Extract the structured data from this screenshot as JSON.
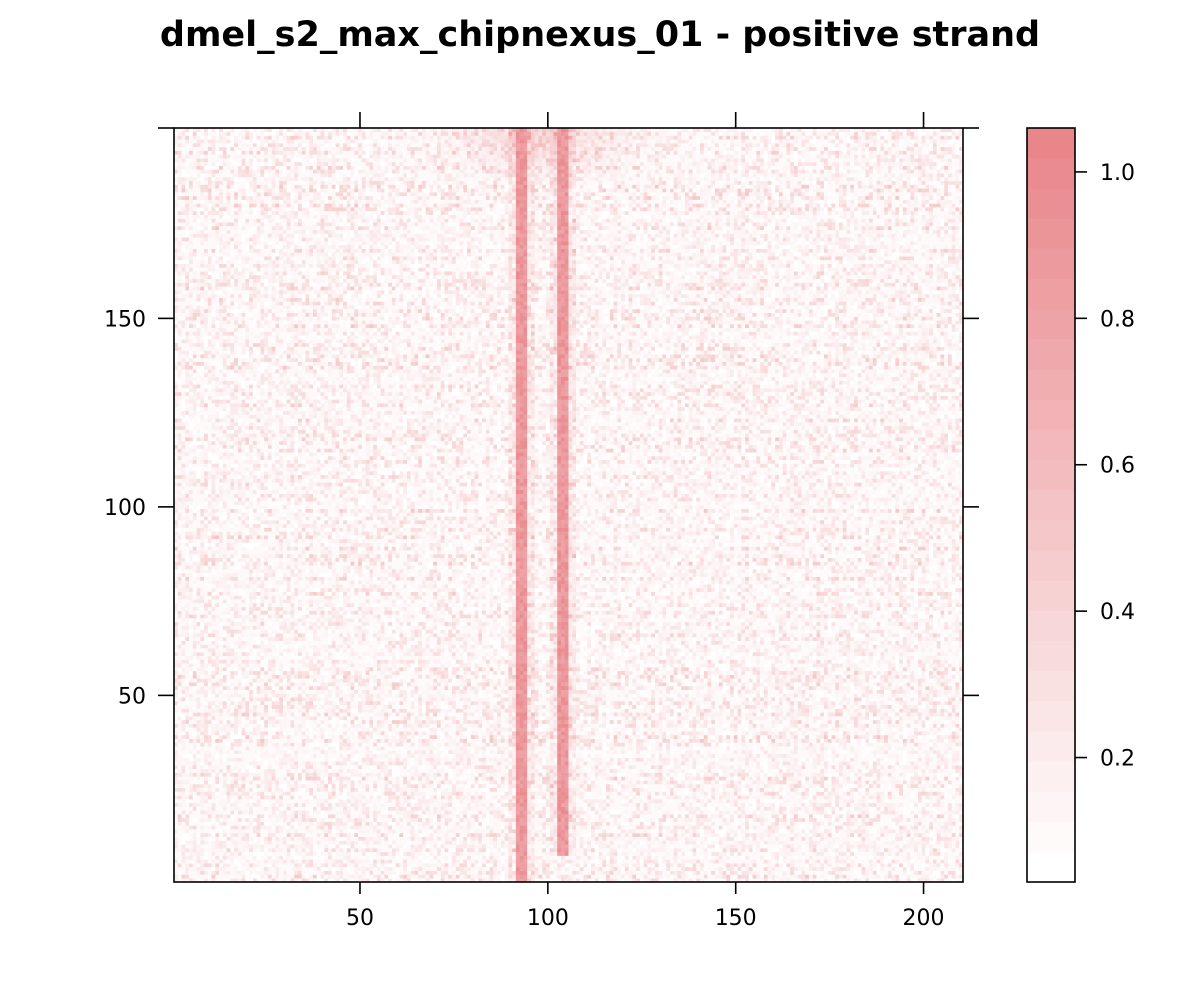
{
  "chart_data": {
    "type": "heatmap",
    "title": "dmel_s2_max_chipnexus_01 - positive strand",
    "xlabel": "",
    "ylabel": "",
    "x_range": [
      1,
      210
    ],
    "y_range": [
      1,
      200
    ],
    "x_ticks": [
      50,
      100,
      150,
      200
    ],
    "y_ticks": [
      50,
      100,
      150
    ],
    "colorbar": {
      "range": [
        0.03,
        1.06
      ],
      "ticks": [
        "0.2",
        "0.4",
        "0.6",
        "0.8",
        "1.0"
      ],
      "tick_values": [
        0.2,
        0.4,
        0.6,
        0.8,
        1.0
      ],
      "low_color": "#ffffff",
      "high_color": "#e8868a"
    },
    "hotspots": [
      {
        "x": 93,
        "y_from": 1,
        "y_to": 200,
        "value": 1.0,
        "note": ""
      },
      {
        "x": 104,
        "y_from": 8,
        "y_to": 200,
        "value": 1.0,
        "note": ""
      }
    ],
    "grid": false,
    "legend": "colorbar-right"
  }
}
